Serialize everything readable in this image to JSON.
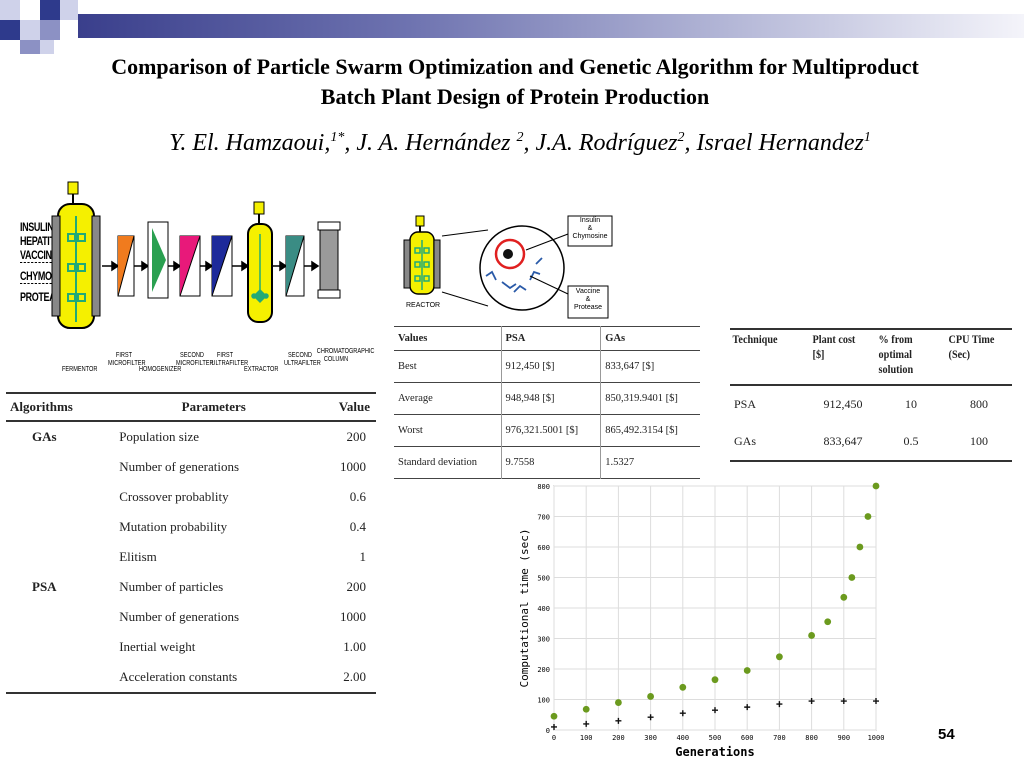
{
  "slide": {
    "title_line1": "Comparison of Particle Swarm Optimization and Genetic Algorithm for Multiproduct",
    "title_line2": "Batch Plant Design of Protein Production",
    "authors": [
      {
        "name": "Y. El. Hamzaoui,",
        "sup": "1*"
      },
      {
        "name": ", J. A. Hernández ",
        "sup": "2"
      },
      {
        "name": ", J.A. Rodríguez",
        "sup": "2"
      },
      {
        "name": ", Israel Hernandez",
        "sup": "1"
      }
    ],
    "page_number": "54"
  },
  "process_diagram": {
    "products": [
      "INSULIN",
      "HEPATITIS",
      "VACCINE",
      "CHYMOSIN",
      "PROTEASE"
    ],
    "stages": [
      "FERMENTOR",
      "FIRST MICROFILTER",
      "HOMOGENIZER",
      "SECOND MICROFILTER",
      "FIRST ULTRAFILTER",
      "EXTRACTOR",
      "SECOND ULTRAFILTER",
      "CHROMATOGRAPHIC COLUMN"
    ]
  },
  "reactor_diagram": {
    "reactor_label": "REACTOR",
    "callout_top": [
      "Insulin",
      "&",
      "Chymosine"
    ],
    "callout_bottom": [
      "Vaccine",
      "&",
      "Protease"
    ]
  },
  "params_table": {
    "headers": [
      "Algorithms",
      "Parameters",
      "Value"
    ],
    "groups": [
      {
        "algorithm": "GAs",
        "rows": [
          {
            "parameter": "Population size",
            "value": "200"
          },
          {
            "parameter": "Number of generations",
            "value": "1000"
          },
          {
            "parameter": "Crossover probablity",
            "value": "0.6"
          },
          {
            "parameter": "Mutation probability",
            "value": "0.4"
          },
          {
            "parameter": "Elitism",
            "value": "1"
          }
        ]
      },
      {
        "algorithm": "PSA",
        "rows": [
          {
            "parameter": "Number of particles",
            "value": "200"
          },
          {
            "parameter": "Number of generations",
            "value": "1000"
          },
          {
            "parameter": "Inertial weight",
            "value": "1.00"
          },
          {
            "parameter": "Acceleration constants",
            "value": "2.00"
          }
        ]
      }
    ]
  },
  "results_table": {
    "headers": [
      "Values",
      "PSA",
      "GAs"
    ],
    "rows": [
      [
        "Best",
        "912,450 [$]",
        "833,647 [$]"
      ],
      [
        "Average",
        "948,948 [$]",
        "850,319.9401 [$]"
      ],
      [
        "Worst",
        "976,321.5001 [$]",
        "865,492.3154 [$]"
      ],
      [
        "Standard deviation",
        "9.7558",
        "1.5327"
      ]
    ]
  },
  "technique_table": {
    "headers": [
      "Technique",
      "Plant cost [$]",
      "% from optimal solution",
      "CPU Time (Sec)"
    ],
    "rows": [
      [
        "PSA",
        "912,450",
        "10",
        "800"
      ],
      [
        "GAs",
        "833,647",
        "0.5",
        "100"
      ]
    ]
  },
  "colors": {
    "green_series": "#6b9a1e",
    "reactor_yellow": "#f5f000",
    "navy": "#2e3a8c"
  },
  "chart_data": {
    "type": "scatter",
    "title": "",
    "xlabel": "Generations",
    "ylabel": "Computational time (sec)",
    "xlim": [
      0,
      1000
    ],
    "ylim": [
      0,
      800
    ],
    "xticks": [
      0,
      100,
      200,
      300,
      400,
      500,
      600,
      700,
      800,
      900,
      1000
    ],
    "yticks": [
      0,
      100,
      200,
      300,
      400,
      500,
      600,
      700,
      800
    ],
    "grid": true,
    "series": [
      {
        "marker": "circle",
        "color": "#6b9a1e",
        "x": [
          0,
          100,
          200,
          300,
          400,
          500,
          600,
          700,
          800,
          850,
          900,
          925,
          950,
          975,
          1000
        ],
        "y": [
          45,
          68,
          90,
          110,
          140,
          165,
          195,
          240,
          310,
          355,
          435,
          500,
          600,
          700,
          800
        ]
      },
      {
        "marker": "plus",
        "color": "#111111",
        "x": [
          0,
          100,
          200,
          300,
          400,
          500,
          600,
          700,
          800,
          900,
          1000
        ],
        "y": [
          10,
          20,
          30,
          42,
          55,
          65,
          75,
          85,
          95,
          95,
          95
        ]
      }
    ]
  }
}
